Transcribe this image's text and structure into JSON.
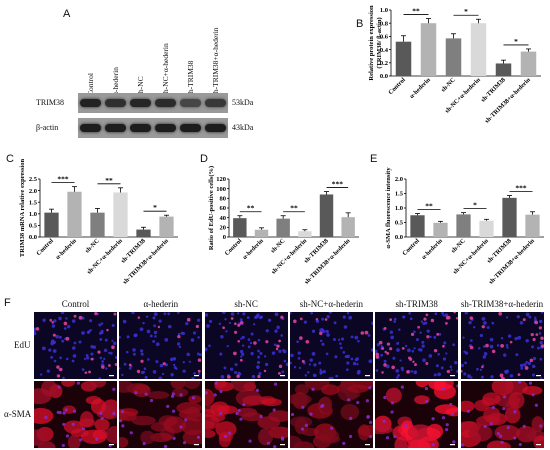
{
  "panels": {
    "A": {
      "label": "A",
      "lanes": [
        "Control",
        "α-hederin",
        "sh-NC",
        "sh-NC+α-hederin",
        "sh-TRIM38",
        "sh-TRIM38+α-hederin"
      ],
      "rows": [
        {
          "name": "TRIM38",
          "kda": "53kDa",
          "intensity": [
            0.85,
            0.7,
            0.8,
            0.75,
            0.45,
            0.6
          ]
        },
        {
          "name": "β-actin",
          "kda": "43kDa",
          "intensity": [
            0.9,
            0.9,
            0.9,
            0.9,
            0.9,
            0.9
          ]
        }
      ]
    },
    "F": {
      "label": "F",
      "columns": [
        "Control",
        "α-hederin",
        "sh-NC",
        "sh-NC+α-hederin",
        "sh-TRIM38",
        "sh-TRIM38+α-hederin"
      ],
      "rows": [
        "EdU",
        "α-SMA"
      ],
      "edu_density": [
        1.0,
        0.5,
        0.95,
        0.45,
        1.6,
        1.1
      ],
      "sma_brightness": [
        1.0,
        0.75,
        0.9,
        0.7,
        1.2,
        0.95
      ]
    }
  },
  "chart_data": [
    {
      "panel": "B",
      "type": "bar",
      "ylabel": "Relative protein expression\n(TRIM38/ β-actin)",
      "categories": [
        "Control",
        "α-hederin",
        "sh-NC",
        "sh-NC+α-hederin",
        "sh-TRIM38",
        "sh-TRIM38+α-hederin"
      ],
      "values": [
        0.52,
        0.8,
        0.57,
        0.8,
        0.19,
        0.37
      ],
      "errors": [
        0.09,
        0.07,
        0.07,
        0.06,
        0.05,
        0.04
      ],
      "ylim": [
        0,
        1.0
      ],
      "yticks": [
        0.0,
        0.2,
        0.4,
        0.6,
        0.8,
        1.0
      ],
      "ytick_labels": [
        "0.0",
        "0.2",
        "0.4",
        "0.6",
        "0.8",
        "1.0"
      ],
      "colors": [
        "#595959",
        "#b3b3b3",
        "#7f7f7f",
        "#d9d9d9",
        "#595959",
        "#b3b3b3"
      ],
      "significance": [
        {
          "from": 0,
          "to": 1,
          "label": "**"
        },
        {
          "from": 2,
          "to": 3,
          "label": "*"
        },
        {
          "from": 4,
          "to": 5,
          "label": "*"
        }
      ]
    },
    {
      "panel": "C",
      "type": "bar",
      "ylabel": "TRIM38 mRNA relative expression",
      "categories": [
        "Control",
        "α-hederin",
        "sh-NC",
        "sh-NC+α-hederin",
        "sh-TRIM38",
        "sh-TRIM38+α-hederin"
      ],
      "values": [
        1.05,
        1.95,
        1.05,
        1.92,
        0.32,
        0.88
      ],
      "errors": [
        0.15,
        0.22,
        0.18,
        0.2,
        0.1,
        0.06
      ],
      "ylim": [
        0,
        2.5
      ],
      "yticks": [
        0.0,
        0.5,
        1.0,
        1.5,
        2.0,
        2.5
      ],
      "ytick_labels": [
        "0.0",
        "0.5",
        "1.0",
        "1.5",
        "2.0",
        "2.5"
      ],
      "colors": [
        "#595959",
        "#b3b3b3",
        "#7f7f7f",
        "#d9d9d9",
        "#595959",
        "#b3b3b3"
      ],
      "significance": [
        {
          "from": 0,
          "to": 1,
          "label": "***"
        },
        {
          "from": 2,
          "to": 3,
          "label": "**"
        },
        {
          "from": 4,
          "to": 5,
          "label": "*"
        }
      ]
    },
    {
      "panel": "D",
      "type": "bar",
      "ylabel": "Ratio of EdU-positive cells(%)",
      "categories": [
        "Control",
        "α-hederin",
        "sh-NC",
        "sh-NC+α-hederin",
        "sh-TRIM38",
        "sh-TRIM38+α-hederin"
      ],
      "values": [
        39,
        15,
        38,
        12,
        88,
        41
      ],
      "errors": [
        5,
        4,
        6,
        3,
        6,
        9
      ],
      "ylim": [
        0,
        120
      ],
      "yticks": [
        0,
        20,
        40,
        60,
        80,
        100,
        120
      ],
      "ytick_labels": [
        "0",
        "20",
        "40",
        "60",
        "80",
        "100",
        "120"
      ],
      "colors": [
        "#595959",
        "#b3b3b3",
        "#7f7f7f",
        "#d9d9d9",
        "#595959",
        "#b3b3b3"
      ],
      "significance": [
        {
          "from": 0,
          "to": 1,
          "label": "**"
        },
        {
          "from": 2,
          "to": 3,
          "label": "**"
        },
        {
          "from": 4,
          "to": 5,
          "label": "***"
        }
      ]
    },
    {
      "panel": "E",
      "type": "bar",
      "ylabel": "α-SMA fluorescence intensity",
      "categories": [
        "Control",
        "α-hederin",
        "sh-NC",
        "sh-NC+α-hederin",
        "sh-TRIM38",
        "sh-TRIM38+α-hederin"
      ],
      "values": [
        0.75,
        0.49,
        0.78,
        0.56,
        1.35,
        0.77
      ],
      "errors": [
        0.06,
        0.05,
        0.06,
        0.05,
        0.08,
        0.1
      ],
      "ylim": [
        0,
        2.0
      ],
      "yticks": [
        0.0,
        0.5,
        1.0,
        1.5,
        2.0
      ],
      "ytick_labels": [
        "0.0",
        "0.5",
        "1.0",
        "1.5",
        "2.0"
      ],
      "colors": [
        "#595959",
        "#b3b3b3",
        "#7f7f7f",
        "#d9d9d9",
        "#595959",
        "#b3b3b3"
      ],
      "significance": [
        {
          "from": 0,
          "to": 1,
          "label": "**"
        },
        {
          "from": 2,
          "to": 3,
          "label": "*"
        },
        {
          "from": 4,
          "to": 5,
          "label": "***"
        }
      ]
    }
  ]
}
